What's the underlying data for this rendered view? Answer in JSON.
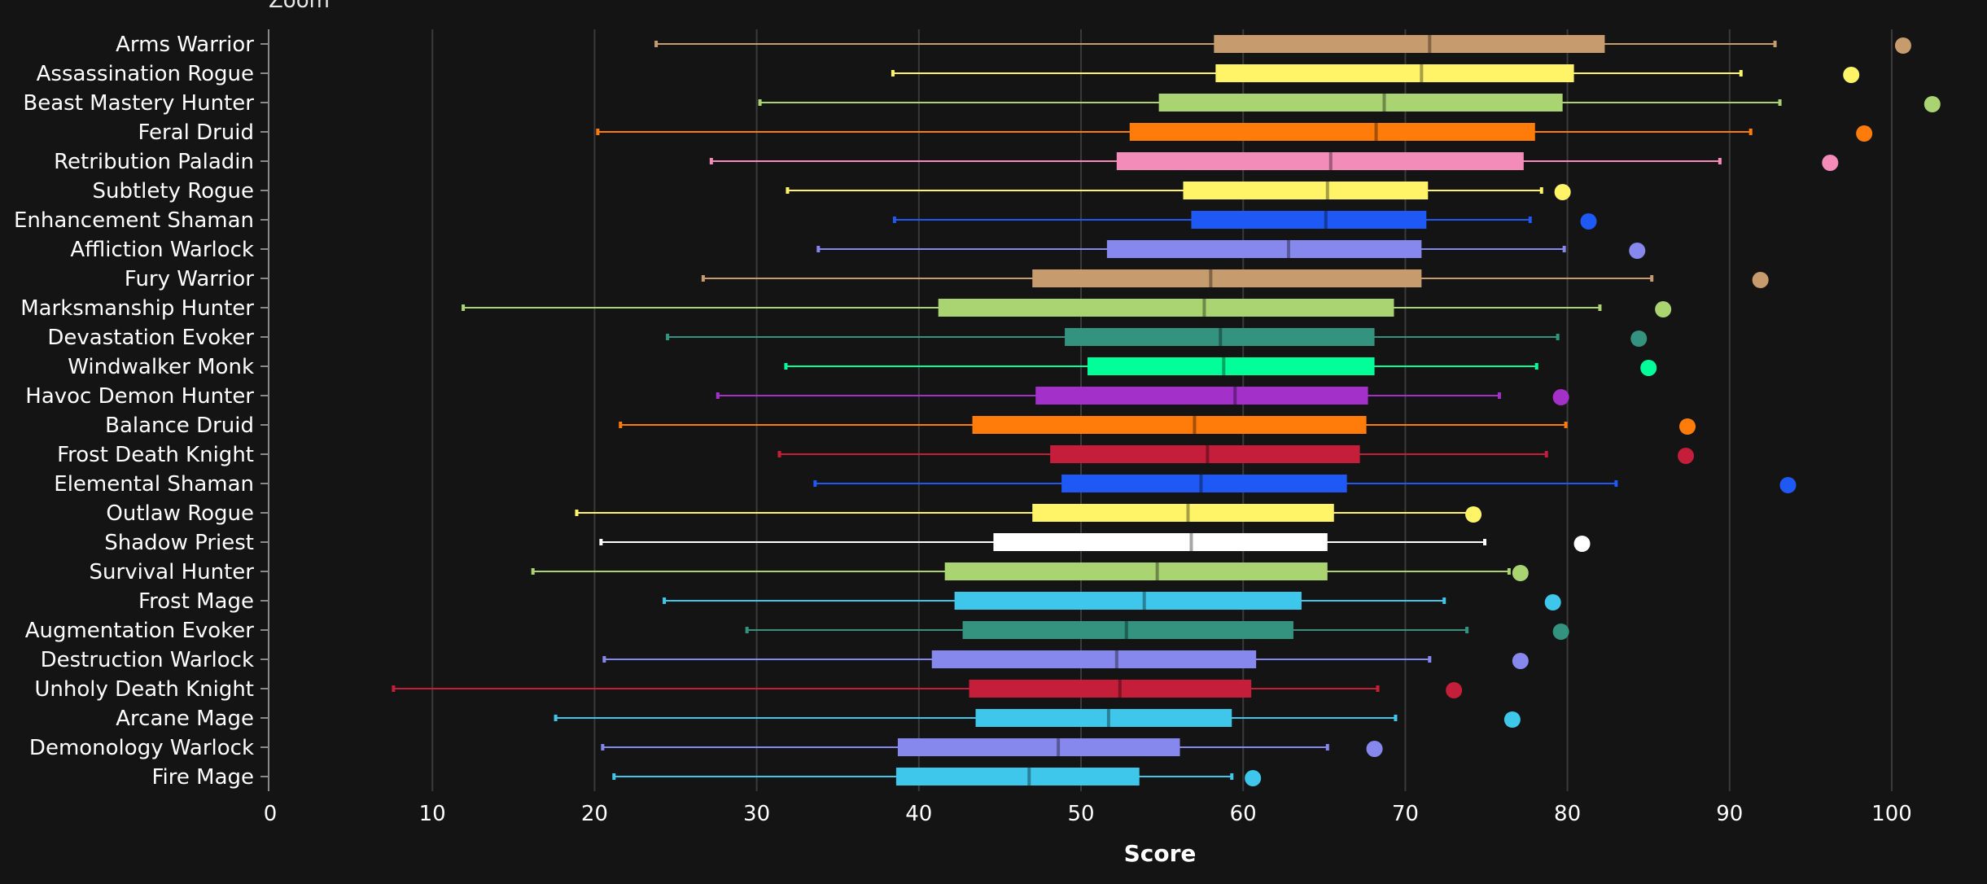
{
  "zoom_label": "Zoom",
  "chart_data": {
    "type": "boxplot",
    "xlabel": "Score",
    "xlim": [
      0,
      105
    ],
    "xticks": [
      0,
      10,
      20,
      30,
      40,
      50,
      60,
      70,
      80,
      90,
      100
    ],
    "grid": true,
    "series": [
      {
        "name": "Arms Warrior",
        "color": "#C69B6D",
        "min": 23.8,
        "q1": 58.2,
        "median": 71.5,
        "q3": 82.3,
        "max": 92.8,
        "outlier": 100.7
      },
      {
        "name": "Assassination Rogue",
        "color": "#FFF468",
        "min": 38.4,
        "q1": 58.3,
        "median": 71.0,
        "q3": 80.4,
        "max": 90.7,
        "outlier": 97.5
      },
      {
        "name": "Beast Mastery Hunter",
        "color": "#AAD372",
        "min": 30.2,
        "q1": 54.8,
        "median": 68.7,
        "q3": 79.7,
        "max": 93.1,
        "outlier": 102.5
      },
      {
        "name": "Feral Druid",
        "color": "#FF7C0A",
        "min": 20.2,
        "q1": 53.0,
        "median": 68.2,
        "q3": 78.0,
        "max": 91.3,
        "outlier": 98.3
      },
      {
        "name": "Retribution Paladin",
        "color": "#F48CBA",
        "min": 27.2,
        "q1": 52.2,
        "median": 65.4,
        "q3": 77.3,
        "max": 89.4,
        "outlier": 96.2
      },
      {
        "name": "Subtlety Rogue",
        "color": "#FFF468",
        "min": 31.9,
        "q1": 56.3,
        "median": 65.2,
        "q3": 71.4,
        "max": 78.4,
        "outlier": 79.7
      },
      {
        "name": "Enhancement Shaman",
        "color": "#1E58F5",
        "min": 38.5,
        "q1": 56.8,
        "median": 65.1,
        "q3": 71.3,
        "max": 77.7,
        "outlier": 81.3
      },
      {
        "name": "Affliction Warlock",
        "color": "#8788EE",
        "min": 33.8,
        "q1": 51.6,
        "median": 62.8,
        "q3": 71.0,
        "max": 79.8,
        "outlier": 84.3
      },
      {
        "name": "Fury Warrior",
        "color": "#C69B6D",
        "min": 26.7,
        "q1": 47.0,
        "median": 58.0,
        "q3": 71.0,
        "max": 85.2,
        "outlier": 91.9
      },
      {
        "name": "Marksmanship Hunter",
        "color": "#AAD372",
        "min": 11.9,
        "q1": 41.2,
        "median": 57.6,
        "q3": 69.3,
        "max": 82.0,
        "outlier": 85.9
      },
      {
        "name": "Devastation Evoker",
        "color": "#33937F",
        "min": 24.5,
        "q1": 49.0,
        "median": 58.6,
        "q3": 68.1,
        "max": 79.4,
        "outlier": 84.4
      },
      {
        "name": "Windwalker Monk",
        "color": "#00FF98",
        "min": 31.8,
        "q1": 50.4,
        "median": 58.8,
        "q3": 68.1,
        "max": 78.1,
        "outlier": 85.0
      },
      {
        "name": "Havoc Demon Hunter",
        "color": "#A330C9",
        "min": 27.6,
        "q1": 47.2,
        "median": 59.5,
        "q3": 67.7,
        "max": 75.8,
        "outlier": 79.6
      },
      {
        "name": "Balance Druid",
        "color": "#FF7C0A",
        "min": 21.6,
        "q1": 43.3,
        "median": 57.0,
        "q3": 67.6,
        "max": 79.9,
        "outlier": 87.4
      },
      {
        "name": "Frost Death Knight",
        "color": "#C41E3A",
        "min": 31.4,
        "q1": 48.1,
        "median": 57.8,
        "q3": 67.2,
        "max": 78.7,
        "outlier": 87.3
      },
      {
        "name": "Elemental Shaman",
        "color": "#1E58F5",
        "min": 33.6,
        "q1": 48.8,
        "median": 57.4,
        "q3": 66.4,
        "max": 83.0,
        "outlier": 93.6
      },
      {
        "name": "Outlaw Rogue",
        "color": "#FFF468",
        "min": 18.9,
        "q1": 47.0,
        "median": 56.6,
        "q3": 65.6,
        "max": 74.0,
        "outlier": 74.2
      },
      {
        "name": "Shadow Priest",
        "color": "#FFFFFF",
        "min": 20.4,
        "q1": 44.6,
        "median": 56.8,
        "q3": 65.2,
        "max": 74.9,
        "outlier": 80.9
      },
      {
        "name": "Survival Hunter",
        "color": "#AAD372",
        "min": 16.2,
        "q1": 41.6,
        "median": 54.7,
        "q3": 65.2,
        "max": 76.4,
        "outlier": 77.1
      },
      {
        "name": "Frost Mage",
        "color": "#3FC7EB",
        "min": 24.3,
        "q1": 42.2,
        "median": 53.9,
        "q3": 63.6,
        "max": 72.4,
        "outlier": 79.1
      },
      {
        "name": "Augmentation Evoker",
        "color": "#33937F",
        "min": 29.4,
        "q1": 42.7,
        "median": 52.8,
        "q3": 63.1,
        "max": 73.8,
        "outlier": 79.6
      },
      {
        "name": "Destruction Warlock",
        "color": "#8788EE",
        "min": 20.6,
        "q1": 40.8,
        "median": 52.2,
        "q3": 60.8,
        "max": 71.5,
        "outlier": 77.1
      },
      {
        "name": "Unholy Death Knight",
        "color": "#C41E3A",
        "min": 7.6,
        "q1": 43.1,
        "median": 52.4,
        "q3": 60.5,
        "max": 68.3,
        "outlier": 73.0
      },
      {
        "name": "Arcane Mage",
        "color": "#3FC7EB",
        "min": 17.6,
        "q1": 43.5,
        "median": 51.7,
        "q3": 59.3,
        "max": 69.4,
        "outlier": 76.6
      },
      {
        "name": "Demonology Warlock",
        "color": "#8788EE",
        "min": 20.5,
        "q1": 38.7,
        "median": 48.6,
        "q3": 56.1,
        "max": 65.2,
        "outlier": 68.1
      },
      {
        "name": "Fire Mage",
        "color": "#3FC7EB",
        "min": 21.2,
        "q1": 38.6,
        "median": 46.8,
        "q3": 53.6,
        "max": 59.3,
        "outlier": 60.6
      }
    ]
  }
}
